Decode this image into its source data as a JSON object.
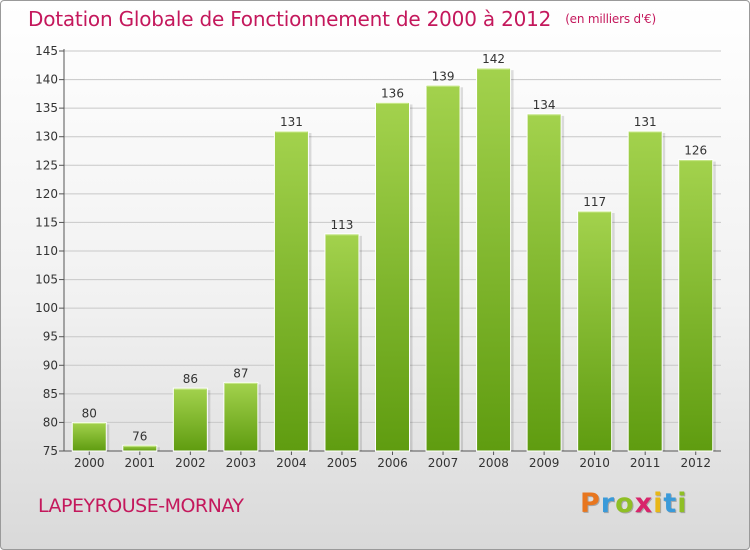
{
  "title": "Dotation Globale de Fonctionnement de 2000 à 2012",
  "subtitle": "(en milliers d'€)",
  "commune": "LAPEYROUSE-MORNAY",
  "brand": {
    "letters": [
      "P",
      "r",
      "o",
      "x",
      "i",
      "t",
      "i"
    ],
    "colors": [
      "#e8761e",
      "#3a9ad9",
      "#8fbf25",
      "#d8256b",
      "#e8b716",
      "#3a9ad9",
      "#8fbf25"
    ]
  },
  "colors": {
    "title": "#c4185c",
    "bar_top": "#a3d24d",
    "bar_bottom": "#5f9c10",
    "grid": "#c8c8c8"
  },
  "chart_data": {
    "type": "bar",
    "title": "Dotation Globale de Fonctionnement de 2000 à 2012",
    "subtitle": "(en milliers d'€)",
    "xlabel": "",
    "ylabel": "",
    "categories": [
      "2000",
      "2001",
      "2002",
      "2003",
      "2004",
      "2005",
      "2006",
      "2007",
      "2008",
      "2009",
      "2010",
      "2011",
      "2012"
    ],
    "values": [
      80,
      76,
      86,
      87,
      131,
      113,
      136,
      139,
      142,
      134,
      117,
      131,
      126
    ],
    "data_labels": [
      "80",
      "76",
      "86",
      "87",
      "131",
      "113",
      "136",
      "139",
      "142",
      "134",
      "117",
      "131",
      "126"
    ],
    "ylim": [
      75,
      145
    ],
    "yticks": [
      75,
      80,
      85,
      90,
      95,
      100,
      105,
      110,
      115,
      120,
      125,
      130,
      135,
      140,
      145
    ],
    "grid": true
  }
}
